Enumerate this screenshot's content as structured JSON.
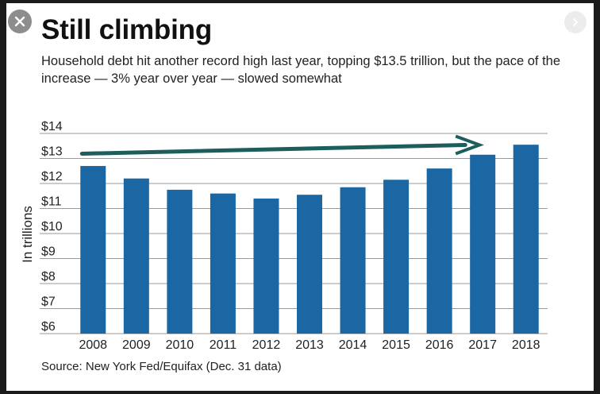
{
  "title": "Still climbing",
  "subtitle": "Household debt hit another record high last year, topping $13.5 trillion, but the pace of the increase — 3% year over year — slowed somewhat",
  "source": "Source: New York Fed/Equifax (Dec. 31 data)",
  "controls": {
    "close_icon": "close-icon",
    "next_icon": "chevron-right-icon"
  },
  "colors": {
    "bar": "#1a67a3",
    "arrow": "#1c5e5b",
    "grid": "#9a9a9a",
    "close_bg": "#8d8d8d"
  },
  "chart_data": {
    "type": "bar",
    "categories": [
      "2008",
      "2009",
      "2010",
      "2011",
      "2012",
      "2013",
      "2014",
      "2015",
      "2016",
      "2017",
      "2018"
    ],
    "values": [
      12.7,
      12.2,
      11.75,
      11.6,
      11.4,
      11.55,
      11.85,
      12.15,
      12.6,
      13.15,
      13.55
    ],
    "ylabel": "In trillions",
    "ylim": [
      6,
      14
    ],
    "yticks": [
      "$6",
      "$7",
      "$8",
      "$9",
      "$10",
      "$11",
      "$12",
      "$13",
      "$14"
    ],
    "grid": true,
    "annotation": {
      "type": "trend-arrow",
      "from_category": "2008",
      "from_value": 13.0,
      "to_category": "2017",
      "to_value": 13.35
    }
  }
}
